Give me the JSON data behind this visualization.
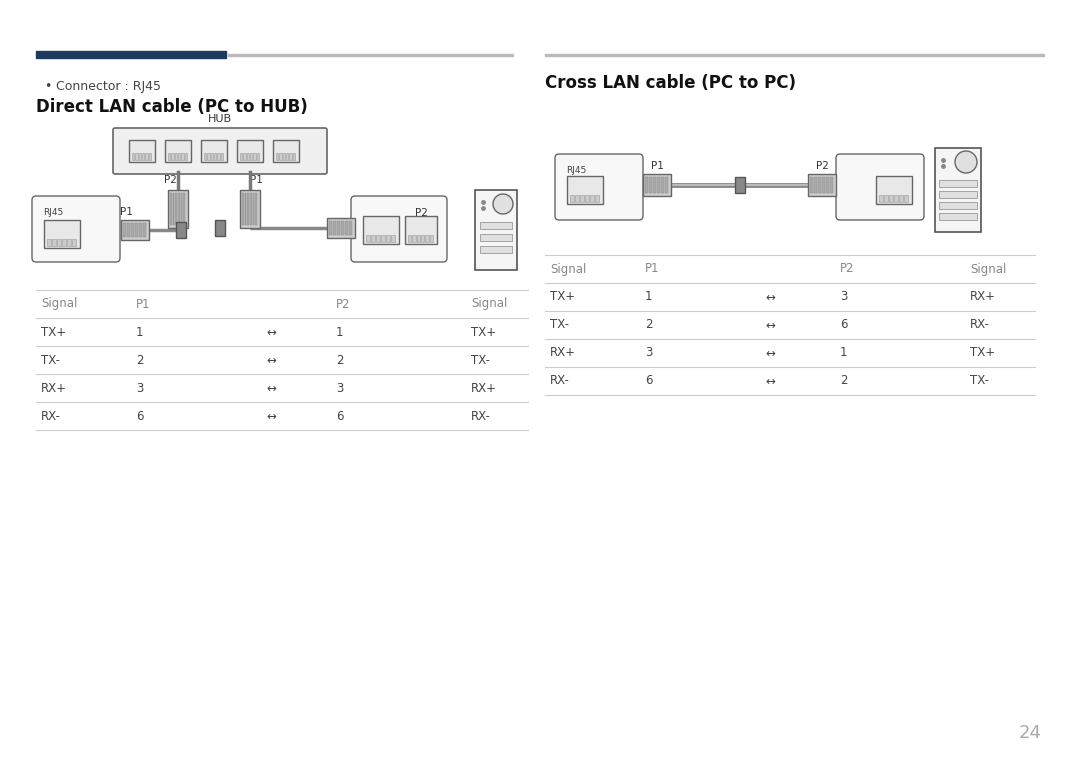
{
  "bg_color": "#ffffff",
  "page_number": "24",
  "top_bar_left_color": "#1e3a5f",
  "top_bar_right_color": "#aaaaaa",
  "bullet_text": "Connector : RJ45",
  "left_title": "Direct LAN cable (PC to HUB)",
  "right_title": "Cross LAN cable (PC to PC)",
  "left_table_headers": [
    "Signal",
    "P1",
    "",
    "P2",
    "Signal"
  ],
  "left_table_rows": [
    [
      "TX+",
      "1",
      "↔",
      "1",
      "TX+"
    ],
    [
      "TX-",
      "2",
      "↔",
      "2",
      "TX-"
    ],
    [
      "RX+",
      "3",
      "↔",
      "3",
      "RX+"
    ],
    [
      "RX-",
      "6",
      "↔",
      "6",
      "RX-"
    ]
  ],
  "right_table_headers": [
    "Signal",
    "P1",
    "",
    "P2",
    "Signal"
  ],
  "right_table_rows": [
    [
      "TX+",
      "1",
      "↔",
      "3",
      "RX+"
    ],
    [
      "TX-",
      "2",
      "↔",
      "6",
      "RX-"
    ],
    [
      "RX+",
      "3",
      "↔",
      "1",
      "TX+"
    ],
    [
      "RX-",
      "6",
      "↔",
      "2",
      "TX-"
    ]
  ],
  "line_color": "#cccccc",
  "text_color": "#444444",
  "header_color": "#888888",
  "diagram_line_color": "#888888",
  "diagram_fill_color": "#f5f5f5",
  "diagram_dark_color": "#555555"
}
